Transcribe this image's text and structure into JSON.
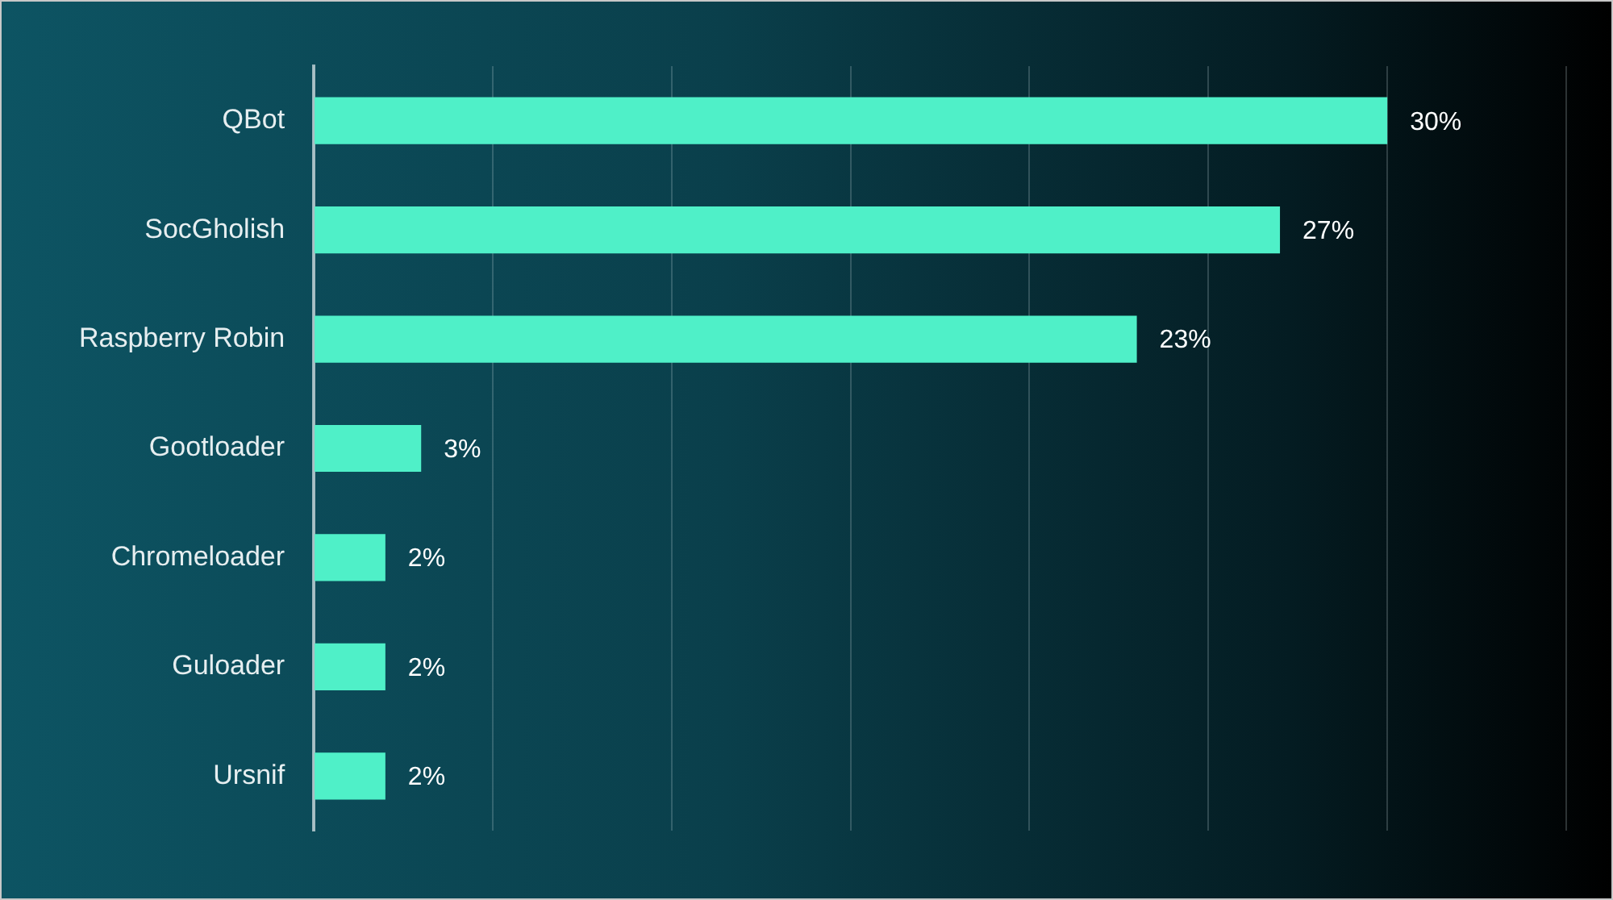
{
  "chart_data": {
    "type": "bar",
    "orientation": "horizontal",
    "categories": [
      "QBot",
      "SocGholish",
      "Raspberry Robin",
      "Gootloader",
      "Chromeloader",
      "Guloader",
      "Ursnif"
    ],
    "values": [
      30,
      27,
      23,
      3,
      2,
      2,
      2
    ],
    "color": "#4ff0c8",
    "xlim": [
      0,
      35
    ],
    "xticks": [
      {
        "value": 0,
        "label": null
      },
      {
        "value": 5,
        "label": null
      },
      {
        "value": 10,
        "label": null
      },
      {
        "value": 15,
        "label": null
      },
      {
        "value": 20,
        "label": null
      },
      {
        "value": 25,
        "label": null
      },
      {
        "value": 30,
        "label": null
      },
      {
        "value": 35,
        "label": null
      }
    ],
    "value_labels": [
      "30%",
      "27%",
      "23%",
      "3%",
      "2%",
      "2%",
      "2%"
    ],
    "grid": "x",
    "tick_labels": "y",
    "legend": false
  }
}
